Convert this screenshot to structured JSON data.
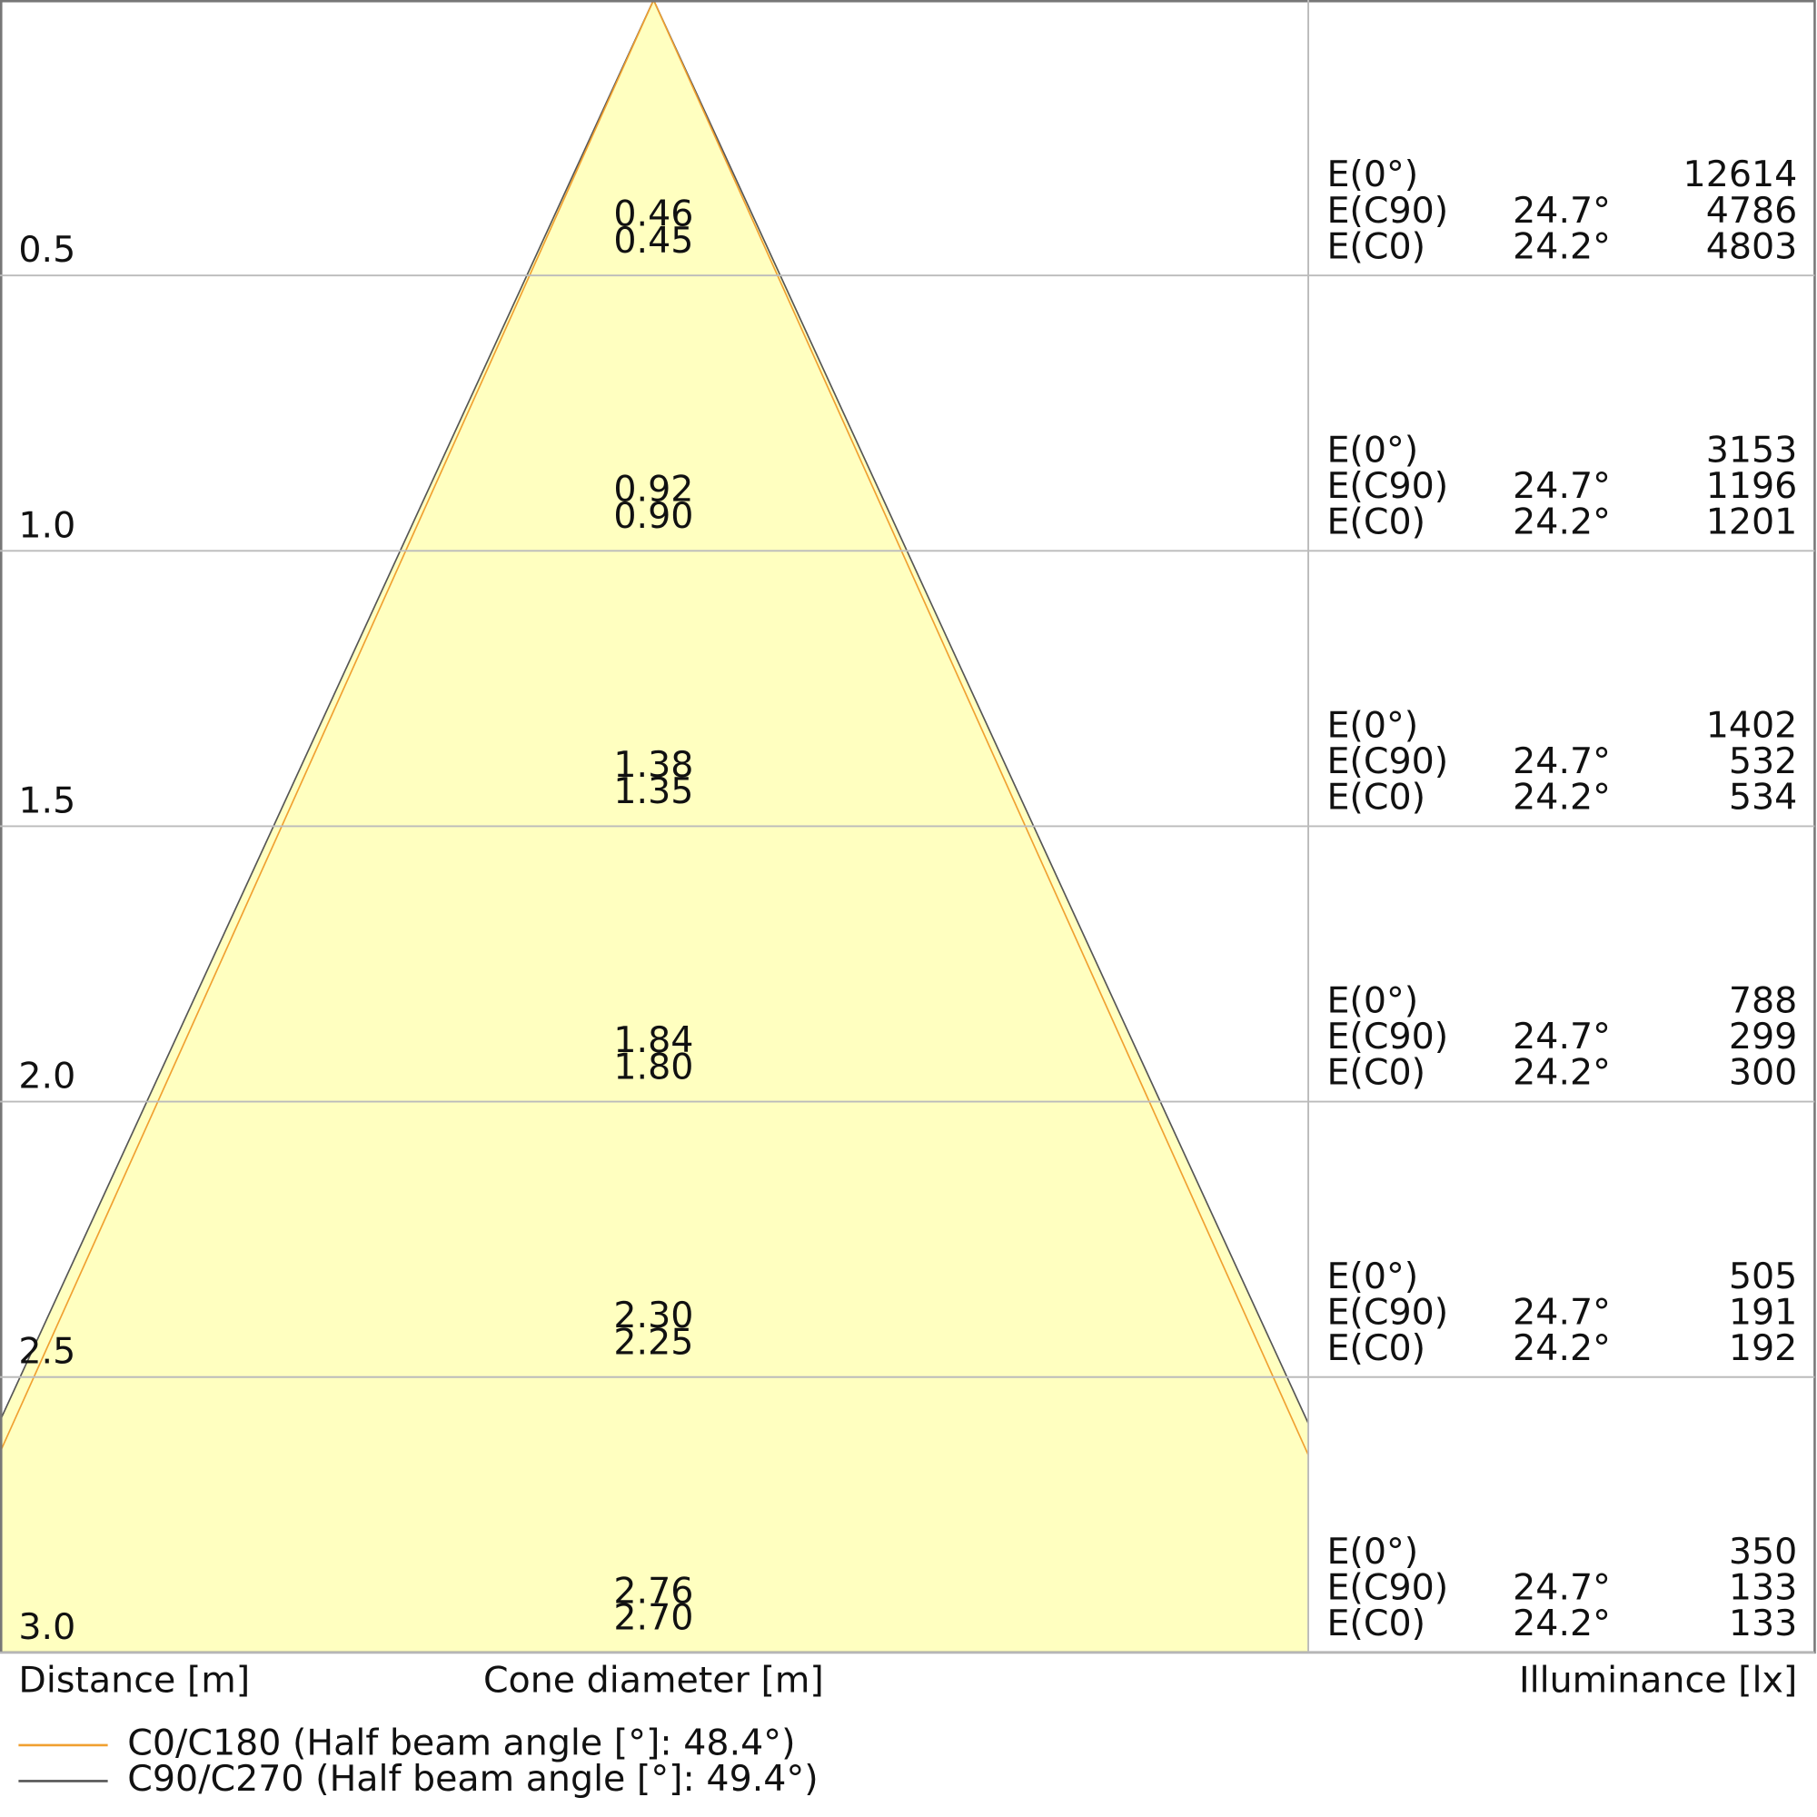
{
  "chart_data": {
    "type": "cone",
    "ylim": [
      0,
      3
    ],
    "yticks": [
      0.5,
      {
        "value": 1,
        "label": "1.0"
      },
      1.5,
      {
        "value": 2,
        "label": "2.0"
      },
      2.5,
      {
        "value": 3,
        "label": "3.0"
      }
    ],
    "series": [
      {
        "name": "C0/C180 (Half beam angle [°]: 48.4°)",
        "color": "#f0a030",
        "values": [
          0.45,
          0.9,
          1.35,
          1.8,
          2.25,
          2.7
        ],
        "value_labels": [
          "0.45",
          "0.90",
          "1.35",
          "1.80",
          "2.25",
          "2.70"
        ]
      },
      {
        "name": "C90/C270 (Half beam angle [°]: 49.4°)",
        "color": "#555555",
        "values": [
          0.46,
          0.92,
          1.38,
          1.84,
          2.3,
          2.76
        ],
        "value_labels": [
          "0.46",
          "0.92",
          "1.38",
          "1.84",
          "2.30",
          "2.76"
        ]
      }
    ],
    "fill_color": "#ffffc0",
    "x_label_left": "Distance [m]",
    "x_label": "Cone diameter [m]",
    "x_label_right": "Illuminance [lx]",
    "illuminance": {
      "rows": [
        {
          "label": "E(0°)",
          "values": [
            12614,
            3153,
            1402,
            788,
            505,
            350
          ]
        },
        {
          "label": "E(C90)",
          "angle": "24.7°",
          "values": [
            4786,
            1196,
            532,
            299,
            191,
            133
          ]
        },
        {
          "label": "E(C0)",
          "angle": "24.2°",
          "values": [
            4803,
            1201,
            534,
            300,
            192,
            133
          ]
        }
      ]
    }
  }
}
